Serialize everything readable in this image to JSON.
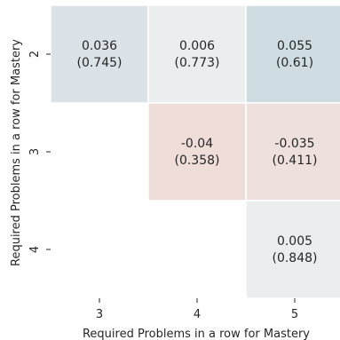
{
  "chart_data": {
    "type": "heatmap",
    "xlabel": "Required Problems in a row for Mastery",
    "ylabel": "Required Problems in a row for Mastery",
    "x_categories": [
      "3",
      "4",
      "5"
    ],
    "y_categories": [
      "2",
      "3",
      "4"
    ],
    "cells": [
      {
        "row": 0,
        "col": 0,
        "value": 0.036,
        "value_label": "0.036",
        "p_label": "(0.745)",
        "color": "#dbe3e8"
      },
      {
        "row": 0,
        "col": 1,
        "value": 0.006,
        "value_label": "0.006",
        "p_label": "(0.773)",
        "color": "#ebeeee"
      },
      {
        "row": 0,
        "col": 2,
        "value": 0.055,
        "value_label": "0.055",
        "p_label": "(0.61)",
        "color": "#cfdde2"
      },
      {
        "row": 1,
        "col": 1,
        "value": -0.04,
        "value_label": "-0.04",
        "p_label": "(0.358)",
        "color": "#eeddd9"
      },
      {
        "row": 1,
        "col": 2,
        "value": -0.035,
        "value_label": "-0.035",
        "p_label": "(0.411)",
        "color": "#eee0dd"
      },
      {
        "row": 2,
        "col": 2,
        "value": 0.005,
        "value_label": "0.005",
        "p_label": "(0.848)",
        "color": "#ebeeee"
      }
    ],
    "grid": false,
    "legend": "none"
  }
}
